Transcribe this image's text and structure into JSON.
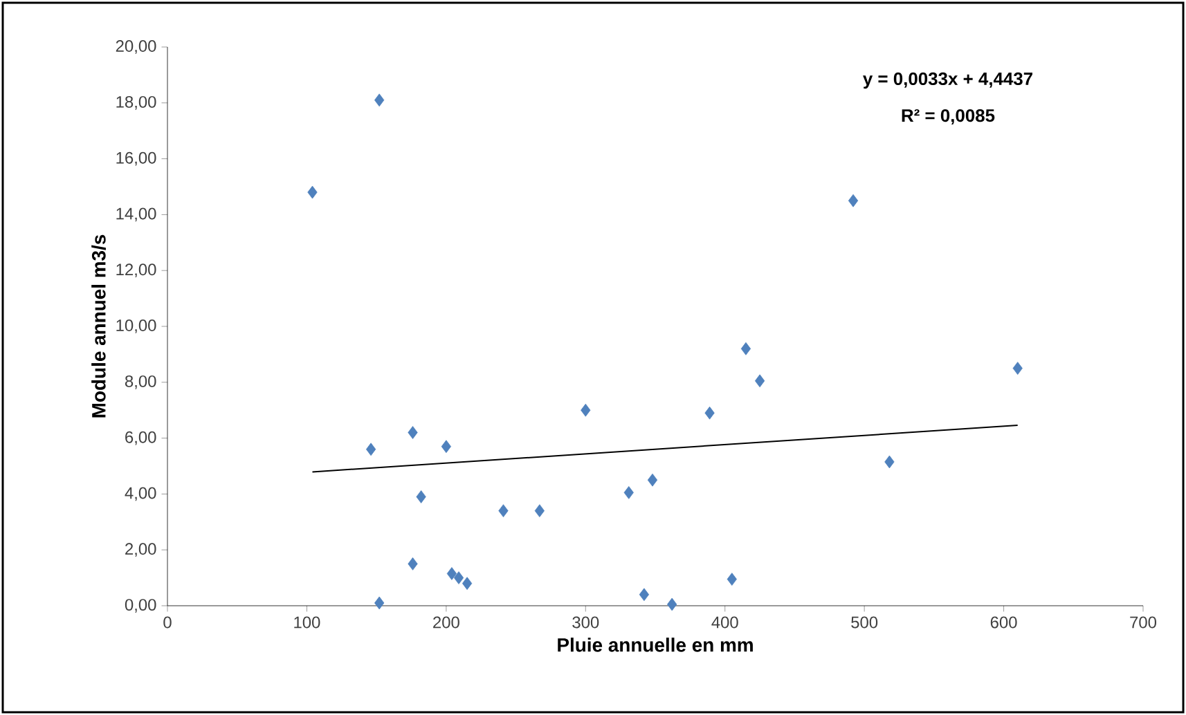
{
  "chart_data": {
    "type": "scatter",
    "xlabel": "Pluie annuelle en mm",
    "ylabel": "Module annuel m3/s",
    "xlim": [
      0,
      700
    ],
    "xticks": [
      0,
      100,
      200,
      300,
      400,
      500,
      600,
      700
    ],
    "ylim": [
      0,
      20
    ],
    "yticks": [
      {
        "value": 0,
        "label": "0,00"
      },
      {
        "value": 2,
        "label": "2,00"
      },
      {
        "value": 4,
        "label": "4,00"
      },
      {
        "value": 6,
        "label": "6,00"
      },
      {
        "value": 8,
        "label": "8,00"
      },
      {
        "value": 10,
        "label": "10,00"
      },
      {
        "value": 12,
        "label": "12,00"
      },
      {
        "value": 14,
        "label": "14,00"
      },
      {
        "value": 16,
        "label": "16,00"
      },
      {
        "value": 18,
        "label": "18,00"
      },
      {
        "value": 20,
        "label": "20,00"
      }
    ],
    "grid": false,
    "marker": "diamond",
    "annotations": [
      "y = 0,0033x + 4,4437",
      "R² = 0,0085"
    ],
    "series": [
      {
        "color": "#4f81bd",
        "x": [
          104,
          152,
          146,
          152,
          176,
          176,
          182,
          200,
          204,
          209,
          215,
          241,
          267,
          300,
          331,
          348,
          342,
          362,
          389,
          405,
          415,
          425,
          492,
          518,
          610
        ],
        "values": [
          14.8,
          18.1,
          5.6,
          0.1,
          6.2,
          1.5,
          3.9,
          5.7,
          1.15,
          1.0,
          0.8,
          3.4,
          3.4,
          7.0,
          4.05,
          4.5,
          0.4,
          0.05,
          6.9,
          0.95,
          9.2,
          8.05,
          14.5,
          5.15,
          8.5
        ]
      },
      {
        "type": "line",
        "color": "#000000",
        "marker": "none",
        "x": [
          104,
          610
        ],
        "values": [
          4.79,
          6.46
        ]
      }
    ]
  }
}
